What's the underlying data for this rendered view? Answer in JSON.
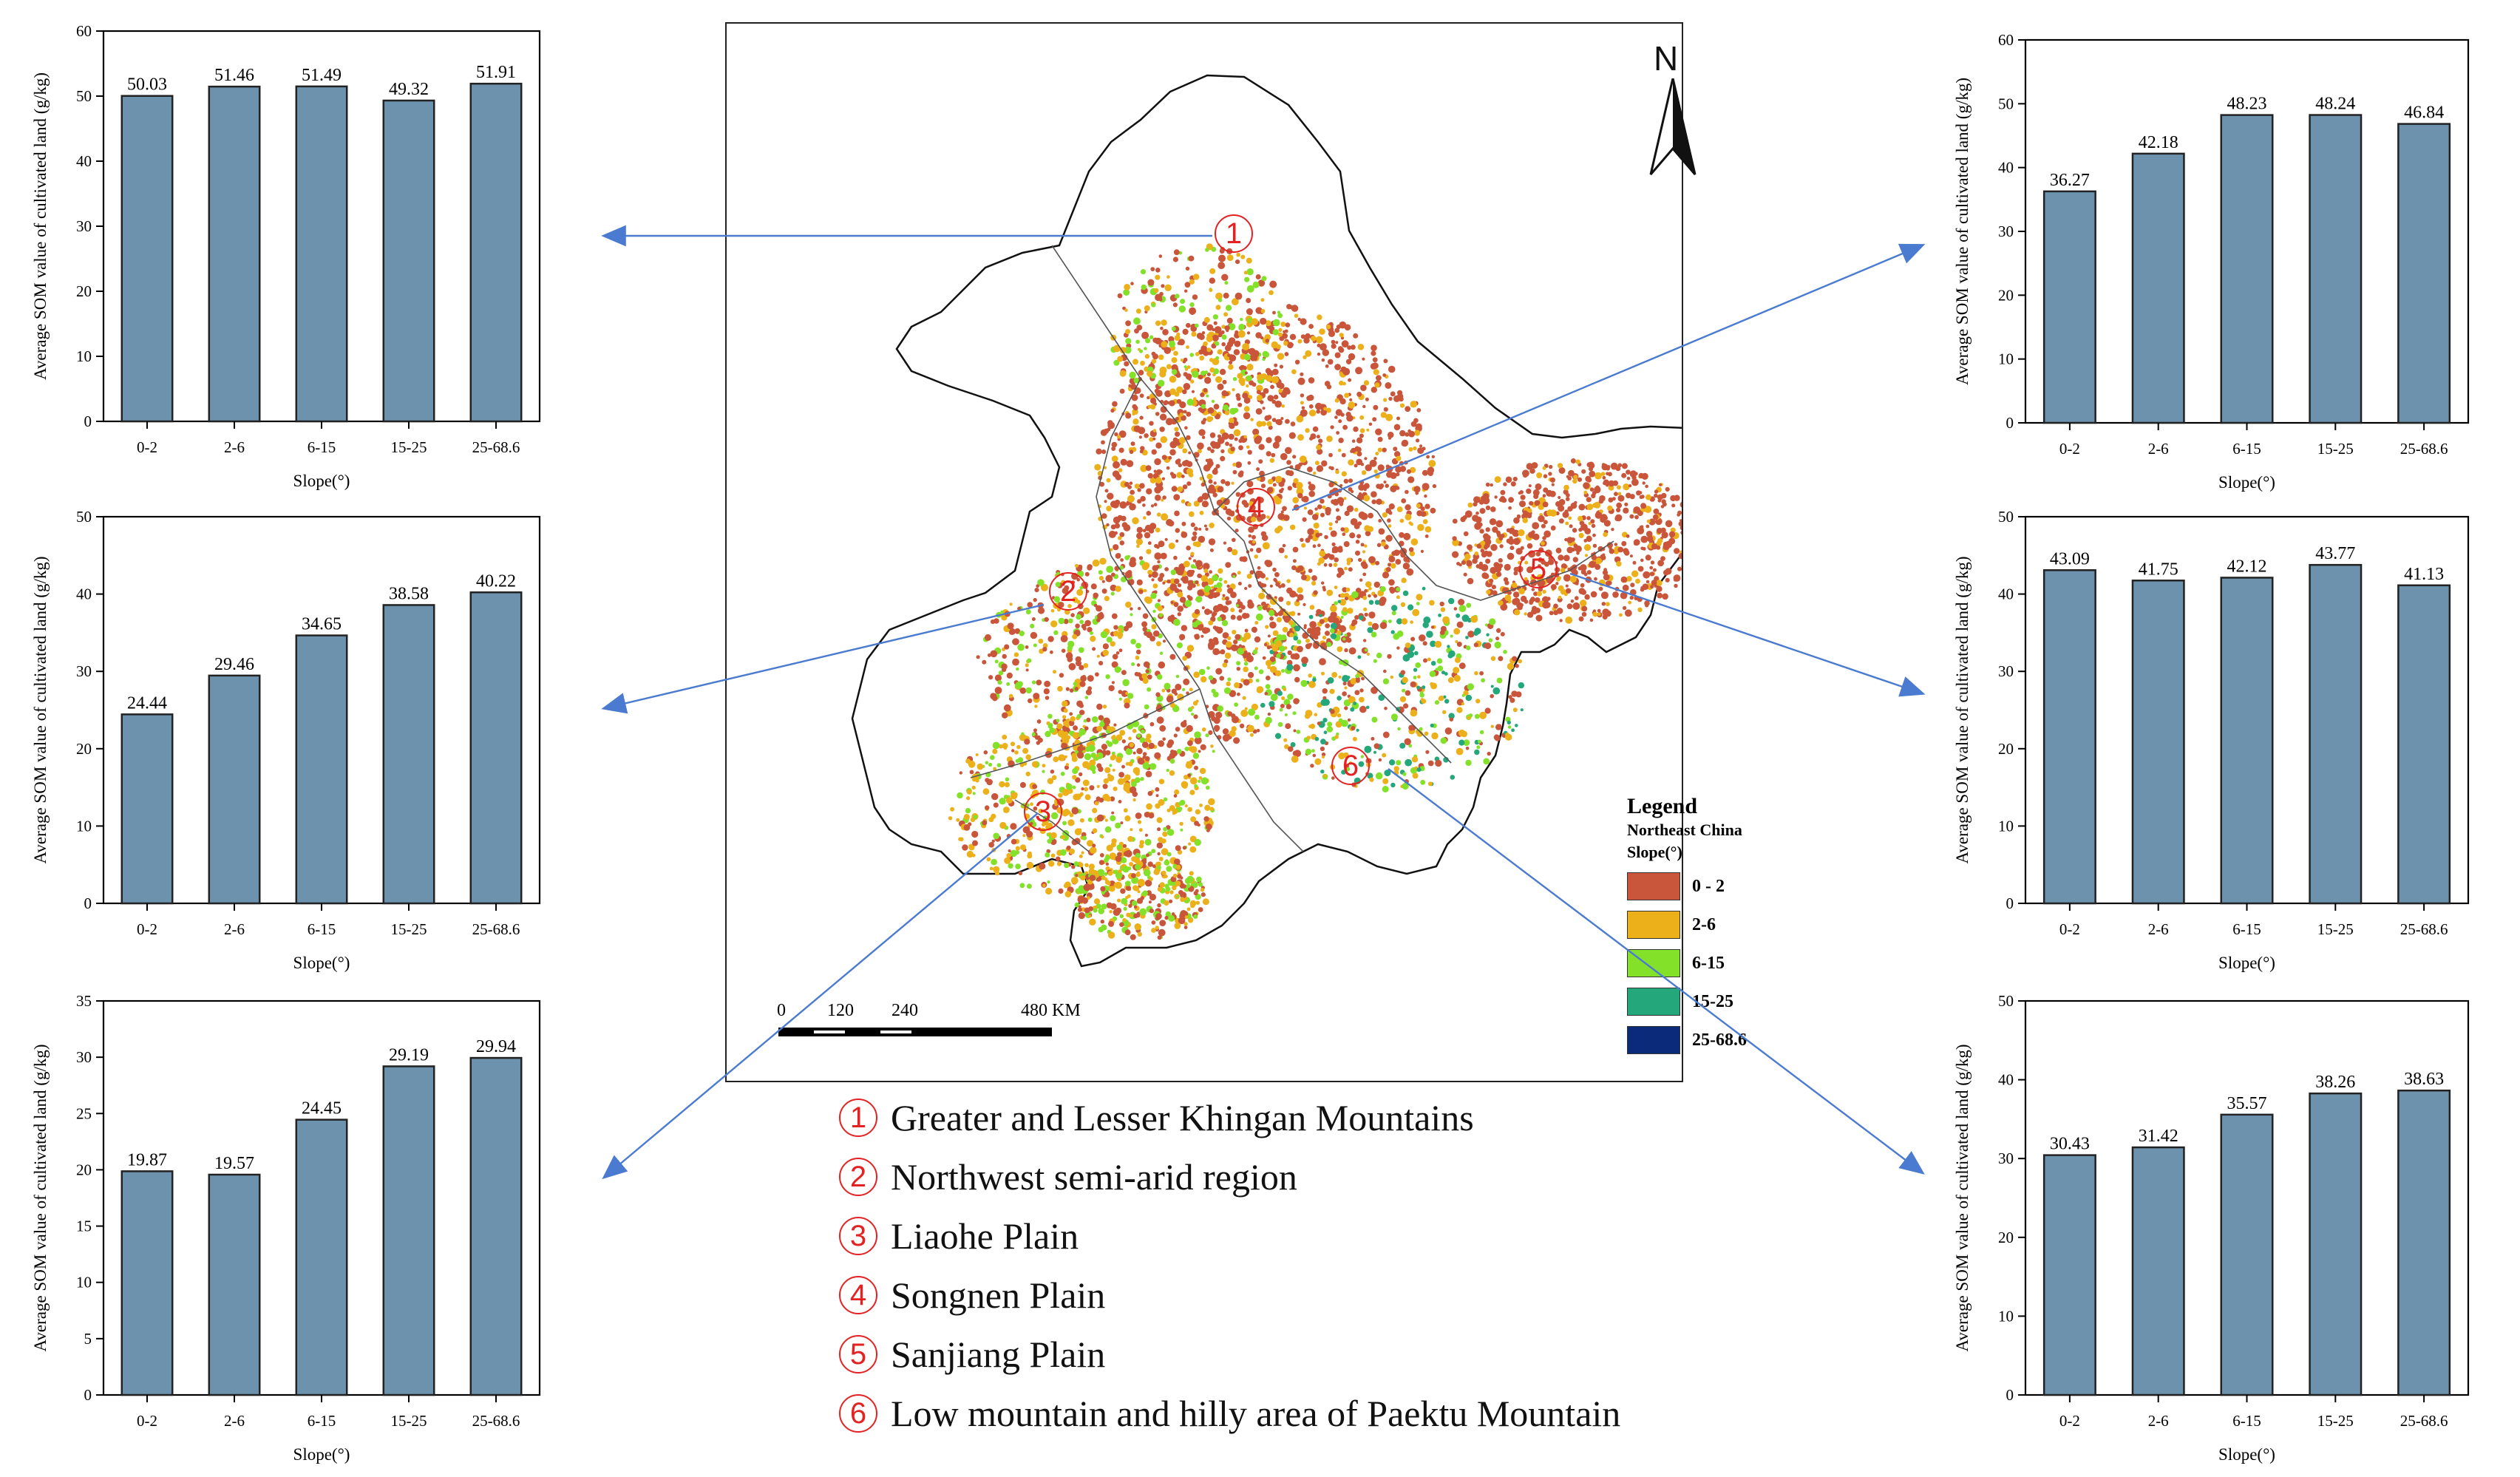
{
  "colors": {
    "bar_fill": "#6d92ad",
    "arrow": "#4a7bd0",
    "region_marker": "#e52222",
    "slope_0_2": "#c9553a",
    "slope_2_6": "#ecb11a",
    "slope_6_15": "#83e12a",
    "slope_15_25": "#24a77a",
    "slope_25_68": "#0b2a7a",
    "boundary": "#555555"
  },
  "map": {
    "north_label": "N",
    "legend_title": "Legend",
    "legend_subtitle": "Northeast China",
    "legend_group": "Slope(°)",
    "legend_items": [
      {
        "label": "0 - 2",
        "color": "#c9553a"
      },
      {
        "label": "2-6",
        "color": "#ecb11a"
      },
      {
        "label": "6-15",
        "color": "#83e12a"
      },
      {
        "label": "15-25",
        "color": "#24a77a"
      },
      {
        "label": "25-68.6",
        "color": "#0b2a7a"
      }
    ],
    "scale_labels": [
      "0",
      "120",
      "240",
      "480 KM"
    ],
    "region_markers": [
      "1",
      "2",
      "3",
      "4",
      "5",
      "6"
    ]
  },
  "regions": [
    {
      "number": "1",
      "name": "Greater and Lesser Khingan Mountains"
    },
    {
      "number": "2",
      "name": "Northwest semi-arid region"
    },
    {
      "number": "3",
      "name": "Liaohe Plain"
    },
    {
      "number": "4",
      "name": "Songnen Plain"
    },
    {
      "number": "5",
      "name": "Sanjiang Plain"
    },
    {
      "number": "6",
      "name": "Low mountain and hilly area of Paektu Mountain"
    }
  ],
  "chart_data": [
    {
      "type": "bar",
      "region": "1",
      "categories": [
        "0-2",
        "2-6",
        "6-15",
        "15-25",
        "25-68.6"
      ],
      "values": [
        50.03,
        51.46,
        51.49,
        49.32,
        51.91
      ],
      "value_labels": [
        "50.03",
        "51.46",
        "51.49",
        "49.32",
        "51.91"
      ],
      "xlabel": "Slope(°)",
      "ylabel": "Average SOM value of cultivated land (g/kg)",
      "ylim": [
        0,
        60
      ],
      "yticks": [
        0,
        10,
        20,
        30,
        40,
        50,
        60
      ]
    },
    {
      "type": "bar",
      "region": "2",
      "categories": [
        "0-2",
        "2-6",
        "6-15",
        "15-25",
        "25-68.6"
      ],
      "values": [
        24.44,
        29.46,
        34.65,
        38.58,
        40.22
      ],
      "value_labels": [
        "24.44",
        "29.46",
        "34.65",
        "38.58",
        "40.22"
      ],
      "xlabel": "Slope(°)",
      "ylabel": "Average SOM value of cultivated land (g/kg)",
      "ylim": [
        0,
        50
      ],
      "yticks": [
        0,
        10,
        20,
        30,
        40,
        50
      ]
    },
    {
      "type": "bar",
      "region": "3",
      "categories": [
        "0-2",
        "2-6",
        "6-15",
        "15-25",
        "25-68.6"
      ],
      "values": [
        19.87,
        19.57,
        24.45,
        29.19,
        29.94
      ],
      "value_labels": [
        "19.87",
        "19.57",
        "24.45",
        "29.19",
        "29.94"
      ],
      "xlabel": "Slope(°)",
      "ylabel": "Average SOM value of cultivated land (g/kg)",
      "ylim": [
        0,
        35
      ],
      "yticks": [
        0,
        5,
        10,
        15,
        20,
        25,
        30,
        35
      ]
    },
    {
      "type": "bar",
      "region": "4",
      "categories": [
        "0-2",
        "2-6",
        "6-15",
        "15-25",
        "25-68.6"
      ],
      "values": [
        36.27,
        42.18,
        48.23,
        48.24,
        46.84
      ],
      "value_labels": [
        "36.27",
        "42.18",
        "48.23",
        "48.24",
        "46.84"
      ],
      "xlabel": "Slope(°)",
      "ylabel": "Average SOM value of cultivated land (g/kg)",
      "ylim": [
        0,
        60
      ],
      "yticks": [
        0,
        10,
        20,
        30,
        40,
        50,
        60
      ]
    },
    {
      "type": "bar",
      "region": "5",
      "categories": [
        "0-2",
        "2-6",
        "6-15",
        "15-25",
        "25-68.6"
      ],
      "values": [
        43.09,
        41.75,
        42.12,
        43.77,
        41.13
      ],
      "value_labels": [
        "43.09",
        "41.75",
        "42.12",
        "43.77",
        "41.13"
      ],
      "xlabel": "Slope(°)",
      "ylabel": "Average SOM value of cultivated land (g/kg)",
      "ylim": [
        0,
        50
      ],
      "yticks": [
        0,
        10,
        20,
        30,
        40,
        50
      ]
    },
    {
      "type": "bar",
      "region": "6",
      "categories": [
        "0-2",
        "2-6",
        "6-15",
        "15-25",
        "25-68.6"
      ],
      "values": [
        30.43,
        31.42,
        35.57,
        38.26,
        38.63
      ],
      "value_labels": [
        "30.43",
        "31.42",
        "35.57",
        "38.26",
        "38.63"
      ],
      "xlabel": "Slope(°)",
      "ylabel": "Average SOM value of cultivated land (g/kg)",
      "ylim": [
        0,
        50
      ],
      "yticks": [
        0,
        10,
        20,
        30,
        40,
        50
      ]
    }
  ]
}
